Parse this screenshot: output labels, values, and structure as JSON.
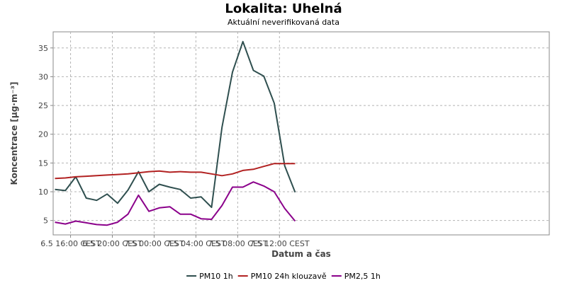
{
  "chart_data": {
    "type": "line",
    "title": "Lokalita: Uhelná",
    "subtitle": "Aktuální neverifikovaná data",
    "xlabel": "Datum a čas",
    "ylabel": "Koncentrace [µg·m⁻³]",
    "ylim": [
      2.5,
      37.8
    ],
    "yticks": [
      5,
      10,
      15,
      20,
      25,
      30,
      35
    ],
    "xlim": [
      "2024-06-05T14:20",
      "2024-06-07T13:50"
    ],
    "xticks": [
      {
        "x": "2024-06-05T16:00",
        "label": "6.5 16:00 CEST"
      },
      {
        "x": "2024-06-05T20:00",
        "label": "6.5 20:00 CEST"
      },
      {
        "x": "2024-06-06T00:00",
        "label": "7.5 00:00 CEST"
      },
      {
        "x": "2024-06-06T04:00",
        "label": "7.5 04:00 CEST"
      },
      {
        "x": "2024-06-06T08:00",
        "label": "7.5 08:00 CEST"
      },
      {
        "x": "2024-06-06T12:00",
        "label": "7.5 12:00 CEST"
      }
    ],
    "x": [
      "2024-06-05T14:30",
      "2024-06-05T15:30",
      "2024-06-05T16:30",
      "2024-06-05T17:30",
      "2024-06-05T18:30",
      "2024-06-05T19:30",
      "2024-06-05T20:30",
      "2024-06-05T21:30",
      "2024-06-05T22:30",
      "2024-06-05T23:30",
      "2024-06-06T00:30",
      "2024-06-06T01:30",
      "2024-06-06T02:30",
      "2024-06-06T03:30",
      "2024-06-06T04:30",
      "2024-06-06T05:30",
      "2024-06-06T06:30",
      "2024-06-06T07:30",
      "2024-06-06T08:30",
      "2024-06-06T09:30",
      "2024-06-06T10:30",
      "2024-06-06T11:30",
      "2024-06-06T12:30",
      "2024-06-06T13:30"
    ],
    "series": [
      {
        "name": "PM10 1h",
        "color": "#2f4f4f",
        "values": [
          10.4,
          10.2,
          12.6,
          8.9,
          8.5,
          9.6,
          8.0,
          10.3,
          13.5,
          10.0,
          11.3,
          10.8,
          10.4,
          8.9,
          9.1,
          7.3,
          21.2,
          30.8,
          36.1,
          31.1,
          30.1,
          25.4,
          14.5,
          9.9
        ]
      },
      {
        "name": "PM10 24h klouzavě",
        "color": "#b22222",
        "values": [
          12.3,
          12.4,
          12.6,
          12.7,
          12.8,
          12.9,
          13.0,
          13.1,
          13.3,
          13.5,
          13.6,
          13.4,
          13.5,
          13.4,
          13.4,
          13.1,
          12.8,
          13.1,
          13.7,
          13.9,
          14.4,
          14.9,
          14.9,
          14.9
        ]
      },
      {
        "name": "PM2,5 1h",
        "color": "#8b008b",
        "values": [
          4.7,
          4.4,
          4.9,
          4.6,
          4.3,
          4.2,
          4.7,
          6.1,
          9.4,
          6.6,
          7.2,
          7.4,
          6.1,
          6.1,
          5.3,
          5.2,
          7.6,
          10.8,
          10.8,
          11.7,
          11.0,
          10.0,
          7.1,
          4.9
        ]
      }
    ],
    "grid": true,
    "legend_position": "bottom-center"
  }
}
